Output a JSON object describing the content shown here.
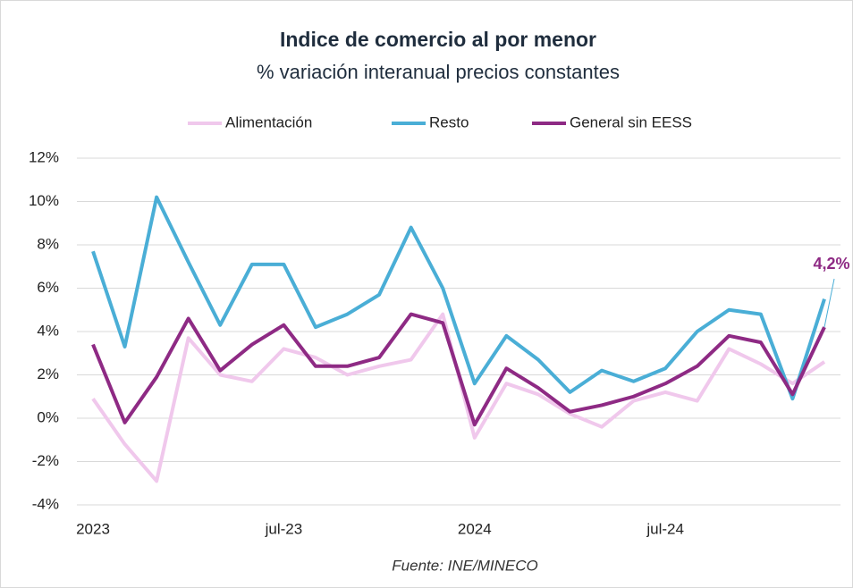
{
  "chart_data": {
    "type": "line",
    "title": "Indice de comercio al por menor",
    "subtitle": "% variación interanual precios constantes",
    "source": "Fuente: INE/MINECO",
    "annotation": "4,2%",
    "categories": [
      "2023",
      null,
      null,
      null,
      null,
      null,
      "jul-23",
      null,
      null,
      null,
      null,
      null,
      "2024",
      null,
      null,
      null,
      null,
      null,
      "jul-24",
      null,
      null,
      null,
      null,
      null
    ],
    "series": [
      {
        "name": "Alimentación",
        "color": "#f0c8ec",
        "values": [
          0.9,
          -1.2,
          -2.9,
          3.7,
          2.0,
          1.7,
          3.2,
          2.8,
          2.0,
          2.4,
          2.7,
          4.8,
          -0.9,
          1.6,
          1.1,
          0.2,
          -0.4,
          0.8,
          1.2,
          0.8,
          3.2,
          2.5,
          1.6,
          2.6
        ]
      },
      {
        "name": "Resto",
        "color": "#4aaed6",
        "values": [
          7.7,
          3.3,
          10.2,
          7.2,
          4.3,
          7.1,
          7.1,
          4.2,
          4.8,
          5.7,
          8.8,
          6.0,
          1.6,
          3.8,
          2.7,
          1.2,
          2.2,
          1.7,
          2.3,
          4.0,
          5.0,
          4.8,
          0.9,
          5.5
        ]
      },
      {
        "name": "General sin EESS",
        "color": "#8e2a84",
        "values": [
          3.4,
          -0.2,
          1.9,
          4.6,
          2.2,
          3.4,
          4.3,
          2.4,
          2.4,
          2.8,
          4.8,
          4.4,
          -0.3,
          2.3,
          1.4,
          0.3,
          0.6,
          1.0,
          1.6,
          2.4,
          3.8,
          3.5,
          1.1,
          4.2
        ]
      }
    ],
    "ylim": [
      -4,
      12
    ],
    "yticks": [
      {
        "value": -4,
        "label": "-4%"
      },
      {
        "value": -2,
        "label": "-2%"
      },
      {
        "value": 0,
        "label": "0%"
      },
      {
        "value": 2,
        "label": "2%"
      },
      {
        "value": 4,
        "label": "4%"
      },
      {
        "value": 6,
        "label": "6%"
      },
      {
        "value": 8,
        "label": "8%"
      },
      {
        "value": 10,
        "label": "10%"
      },
      {
        "value": 12,
        "label": "12%"
      }
    ],
    "grid": true
  }
}
